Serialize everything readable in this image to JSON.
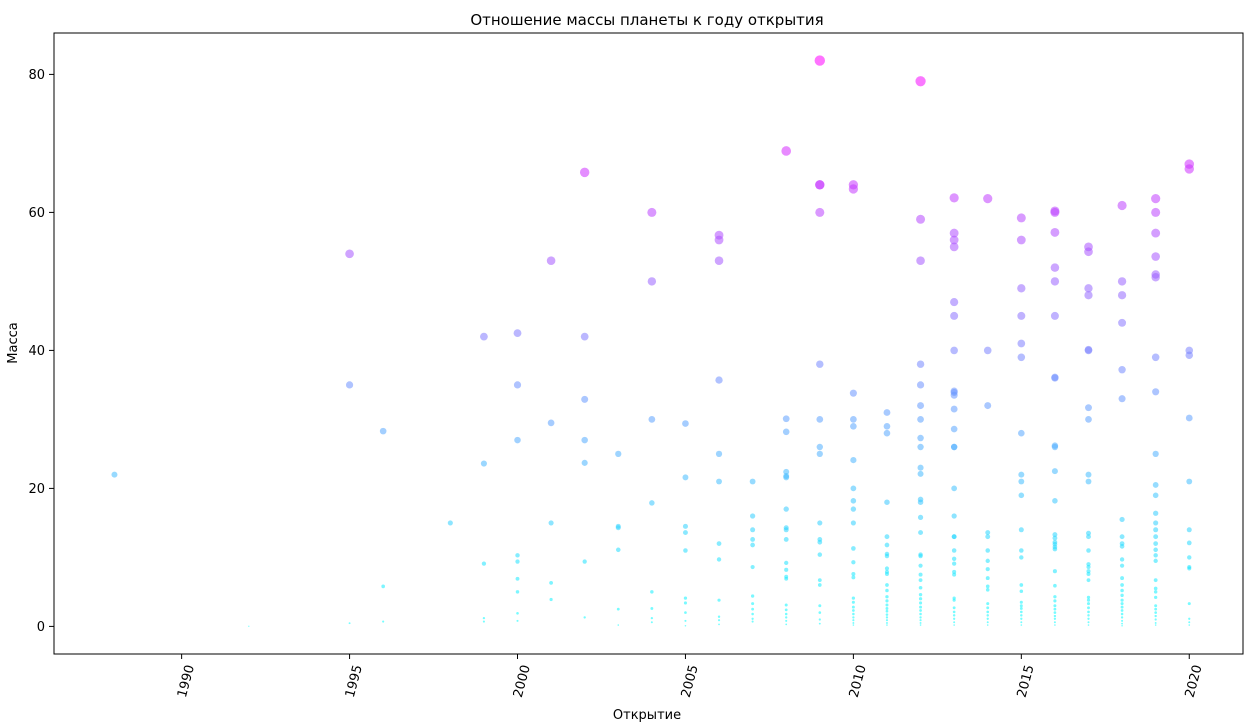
{
  "chart_data": {
    "type": "scatter",
    "title": "Отношение массы планеты к году открытия",
    "xlabel": "Открытие",
    "ylabel": "Масса",
    "xlim": [
      1986.2,
      2021.6
    ],
    "ylim": [
      -4,
      86
    ],
    "x_ticks": [
      1990,
      1995,
      2000,
      2005,
      2010,
      2015,
      2020
    ],
    "y_ticks": [
      0,
      20,
      40,
      60,
      80
    ],
    "grid": false,
    "colormap": [
      "#00ffff",
      "#ff00ff"
    ],
    "points": [
      [
        1988,
        22
      ],
      [
        1992,
        0.02
      ],
      [
        1995,
        54
      ],
      [
        1995,
        35
      ],
      [
        1995,
        0.47
      ],
      [
        1996,
        28.3
      ],
      [
        1996,
        5.8
      ],
      [
        1996,
        0.7
      ],
      [
        1998,
        15
      ],
      [
        1999,
        42
      ],
      [
        1999,
        23.6
      ],
      [
        1999,
        9.1
      ],
      [
        1999,
        1.2
      ],
      [
        1999,
        0.7
      ],
      [
        2000,
        42.5
      ],
      [
        2000,
        35
      ],
      [
        2000,
        27
      ],
      [
        2000,
        10.3
      ],
      [
        2000,
        9.4
      ],
      [
        2000,
        6.9
      ],
      [
        2000,
        5
      ],
      [
        2000,
        1.9
      ],
      [
        2000,
        0.8
      ],
      [
        2001,
        53
      ],
      [
        2001,
        29.5
      ],
      [
        2001,
        15
      ],
      [
        2001,
        6.3
      ],
      [
        2001,
        3.9
      ],
      [
        2002,
        65.8
      ],
      [
        2002,
        42
      ],
      [
        2002,
        32.9
      ],
      [
        2002,
        27
      ],
      [
        2002,
        23.7
      ],
      [
        2002,
        9.4
      ],
      [
        2002,
        1.3
      ],
      [
        2003,
        25
      ],
      [
        2003,
        14.5
      ],
      [
        2003,
        14.3
      ],
      [
        2003,
        11.1
      ],
      [
        2003,
        2.5
      ],
      [
        2003,
        0.2
      ],
      [
        2004,
        60
      ],
      [
        2004,
        50
      ],
      [
        2004,
        30
      ],
      [
        2004,
        17.9
      ],
      [
        2004,
        5
      ],
      [
        2004,
        2.6
      ],
      [
        2004,
        1.2
      ],
      [
        2004,
        0.6
      ],
      [
        2005,
        29.4
      ],
      [
        2005,
        21.6
      ],
      [
        2005,
        14.5
      ],
      [
        2005,
        13.6
      ],
      [
        2005,
        11
      ],
      [
        2005,
        4.1
      ],
      [
        2005,
        3.4
      ],
      [
        2005,
        2
      ],
      [
        2005,
        0.8
      ],
      [
        2005,
        0.1
      ],
      [
        2006,
        56.7
      ],
      [
        2006,
        56
      ],
      [
        2006,
        53
      ],
      [
        2006,
        35.7
      ],
      [
        2006,
        25
      ],
      [
        2006,
        21
      ],
      [
        2006,
        12
      ],
      [
        2006,
        9.7
      ],
      [
        2006,
        3.8
      ],
      [
        2006,
        1.4
      ],
      [
        2006,
        0.9
      ],
      [
        2006,
        0.3
      ],
      [
        2007,
        21
      ],
      [
        2007,
        16
      ],
      [
        2007,
        14
      ],
      [
        2007,
        12.6
      ],
      [
        2007,
        11.8
      ],
      [
        2007,
        8.6
      ],
      [
        2007,
        4.4
      ],
      [
        2007,
        3.3
      ],
      [
        2007,
        2.5
      ],
      [
        2007,
        1.8
      ],
      [
        2007,
        1.1
      ],
      [
        2007,
        0.7
      ],
      [
        2008,
        68.9
      ],
      [
        2008,
        30.1
      ],
      [
        2008,
        28.2
      ],
      [
        2008,
        22.4
      ],
      [
        2008,
        21.8
      ],
      [
        2008,
        21.6
      ],
      [
        2008,
        17
      ],
      [
        2008,
        14.3
      ],
      [
        2008,
        14
      ],
      [
        2008,
        12.6
      ],
      [
        2008,
        9.2
      ],
      [
        2008,
        8.2
      ],
      [
        2008,
        7.2
      ],
      [
        2008,
        6.9
      ],
      [
        2008,
        3.1
      ],
      [
        2008,
        2.4
      ],
      [
        2008,
        1.8
      ],
      [
        2008,
        1.3
      ],
      [
        2008,
        0.8
      ],
      [
        2008,
        0.3
      ],
      [
        2009,
        82
      ],
      [
        2009,
        64
      ],
      [
        2009,
        64
      ],
      [
        2009,
        60
      ],
      [
        2009,
        38
      ],
      [
        2009,
        30
      ],
      [
        2009,
        26
      ],
      [
        2009,
        25
      ],
      [
        2009,
        15
      ],
      [
        2009,
        12.6
      ],
      [
        2009,
        12.2
      ],
      [
        2009,
        10.4
      ],
      [
        2009,
        6.7
      ],
      [
        2009,
        6
      ],
      [
        2009,
        3
      ],
      [
        2009,
        2
      ],
      [
        2009,
        1
      ],
      [
        2009,
        0.4
      ],
      [
        2010,
        64
      ],
      [
        2010,
        63.4
      ],
      [
        2010,
        33.8
      ],
      [
        2010,
        30
      ],
      [
        2010,
        29
      ],
      [
        2010,
        24.1
      ],
      [
        2010,
        20
      ],
      [
        2010,
        18.2
      ],
      [
        2010,
        17
      ],
      [
        2010,
        15
      ],
      [
        2010,
        11.3
      ],
      [
        2010,
        9.3
      ],
      [
        2010,
        7.6
      ],
      [
        2010,
        7.1
      ],
      [
        2010,
        4.1
      ],
      [
        2010,
        3.5
      ],
      [
        2010,
        2.8
      ],
      [
        2010,
        2.3
      ],
      [
        2010,
        1.8
      ],
      [
        2010,
        1.3
      ],
      [
        2010,
        0.9
      ],
      [
        2010,
        0.5
      ],
      [
        2010,
        0.2
      ],
      [
        2011,
        31
      ],
      [
        2011,
        29
      ],
      [
        2011,
        28
      ],
      [
        2011,
        18
      ],
      [
        2011,
        13
      ],
      [
        2011,
        11.8
      ],
      [
        2011,
        10.5
      ],
      [
        2011,
        10.2
      ],
      [
        2011,
        8.4
      ],
      [
        2011,
        7.9
      ],
      [
        2011,
        7.6
      ],
      [
        2011,
        6
      ],
      [
        2011,
        5.2
      ],
      [
        2011,
        4.3
      ],
      [
        2011,
        3.7
      ],
      [
        2011,
        3.1
      ],
      [
        2011,
        2.6
      ],
      [
        2011,
        2.2
      ],
      [
        2011,
        1.7
      ],
      [
        2011,
        1.3
      ],
      [
        2011,
        0.9
      ],
      [
        2011,
        0.5
      ],
      [
        2011,
        0.2
      ],
      [
        2012,
        79
      ],
      [
        2012,
        59
      ],
      [
        2012,
        53
      ],
      [
        2012,
        38
      ],
      [
        2012,
        35
      ],
      [
        2012,
        32
      ],
      [
        2012,
        30
      ],
      [
        2012,
        27.3
      ],
      [
        2012,
        26
      ],
      [
        2012,
        23
      ],
      [
        2012,
        22.1
      ],
      [
        2012,
        18.4
      ],
      [
        2012,
        18
      ],
      [
        2012,
        15.8
      ],
      [
        2012,
        13.6
      ],
      [
        2012,
        10.4
      ],
      [
        2012,
        10.2
      ],
      [
        2012,
        8.8
      ],
      [
        2012,
        7.5
      ],
      [
        2012,
        6.7
      ],
      [
        2012,
        5.6
      ],
      [
        2012,
        4.6
      ],
      [
        2012,
        4
      ],
      [
        2012,
        3.4
      ],
      [
        2012,
        2.8
      ],
      [
        2012,
        2.3
      ],
      [
        2012,
        1.8
      ],
      [
        2012,
        1.3
      ],
      [
        2012,
        0.9
      ],
      [
        2012,
        0.5
      ],
      [
        2012,
        0.2
      ],
      [
        2013,
        62.1
      ],
      [
        2013,
        57
      ],
      [
        2013,
        56
      ],
      [
        2013,
        55
      ],
      [
        2013,
        47
      ],
      [
        2013,
        45
      ],
      [
        2013,
        40
      ],
      [
        2013,
        34.1
      ],
      [
        2013,
        33.9
      ],
      [
        2013,
        33.5
      ],
      [
        2013,
        31.5
      ],
      [
        2013,
        28.6
      ],
      [
        2013,
        26
      ],
      [
        2013,
        26
      ],
      [
        2013,
        20
      ],
      [
        2013,
        16
      ],
      [
        2013,
        13
      ],
      [
        2013,
        13
      ],
      [
        2013,
        11
      ],
      [
        2013,
        9.8
      ],
      [
        2013,
        9.1
      ],
      [
        2013,
        7.9
      ],
      [
        2013,
        7.5
      ],
      [
        2013,
        4.1
      ],
      [
        2013,
        3.8
      ],
      [
        2013,
        2.7
      ],
      [
        2013,
        2.1
      ],
      [
        2013,
        1.6
      ],
      [
        2013,
        1.1
      ],
      [
        2013,
        0.6
      ],
      [
        2013,
        0.2
      ],
      [
        2014,
        62
      ],
      [
        2014,
        40
      ],
      [
        2014,
        32
      ],
      [
        2014,
        13.6
      ],
      [
        2014,
        13
      ],
      [
        2014,
        11
      ],
      [
        2014,
        9.5
      ],
      [
        2014,
        8.3
      ],
      [
        2014,
        7
      ],
      [
        2014,
        5.8
      ],
      [
        2014,
        5.3
      ],
      [
        2014,
        3.3
      ],
      [
        2014,
        2.7
      ],
      [
        2014,
        2.1
      ],
      [
        2014,
        1.6
      ],
      [
        2014,
        1.1
      ],
      [
        2014,
        0.6
      ],
      [
        2014,
        0.2
      ],
      [
        2015,
        59.2
      ],
      [
        2015,
        56
      ],
      [
        2015,
        49
      ],
      [
        2015,
        45
      ],
      [
        2015,
        41
      ],
      [
        2015,
        39
      ],
      [
        2015,
        28
      ],
      [
        2015,
        22
      ],
      [
        2015,
        21
      ],
      [
        2015,
        19
      ],
      [
        2015,
        14
      ],
      [
        2015,
        11
      ],
      [
        2015,
        10
      ],
      [
        2015,
        6
      ],
      [
        2015,
        5.1
      ],
      [
        2015,
        3.5
      ],
      [
        2015,
        3
      ],
      [
        2015,
        2.6
      ],
      [
        2015,
        2.1
      ],
      [
        2015,
        1.6
      ],
      [
        2015,
        1.1
      ],
      [
        2015,
        0.6
      ],
      [
        2015,
        0.2
      ],
      [
        2016,
        60.2
      ],
      [
        2016,
        60
      ],
      [
        2016,
        57.1
      ],
      [
        2016,
        52
      ],
      [
        2016,
        50
      ],
      [
        2016,
        45
      ],
      [
        2016,
        36.1
      ],
      [
        2016,
        36
      ],
      [
        2016,
        26.2
      ],
      [
        2016,
        26
      ],
      [
        2016,
        22.5
      ],
      [
        2016,
        18.2
      ],
      [
        2016,
        13.3
      ],
      [
        2016,
        12.8
      ],
      [
        2016,
        12.2
      ],
      [
        2016,
        11.9
      ],
      [
        2016,
        11.5
      ],
      [
        2016,
        11.2
      ],
      [
        2016,
        8
      ],
      [
        2016,
        5.9
      ],
      [
        2016,
        4.3
      ],
      [
        2016,
        3.7
      ],
      [
        2016,
        3
      ],
      [
        2016,
        2.5
      ],
      [
        2016,
        2
      ],
      [
        2016,
        1.5
      ],
      [
        2016,
        1.1
      ],
      [
        2016,
        0.6
      ],
      [
        2016,
        0.2
      ],
      [
        2017,
        55
      ],
      [
        2017,
        54.3
      ],
      [
        2017,
        49
      ],
      [
        2017,
        48
      ],
      [
        2017,
        40.1
      ],
      [
        2017,
        40
      ],
      [
        2017,
        31.7
      ],
      [
        2017,
        30
      ],
      [
        2017,
        22
      ],
      [
        2017,
        21
      ],
      [
        2017,
        13.5
      ],
      [
        2017,
        13
      ],
      [
        2017,
        11
      ],
      [
        2017,
        9
      ],
      [
        2017,
        8.6
      ],
      [
        2017,
        8
      ],
      [
        2017,
        7.6
      ],
      [
        2017,
        6.7
      ],
      [
        2017,
        4.2
      ],
      [
        2017,
        3.8
      ],
      [
        2017,
        3.3
      ],
      [
        2017,
        2.7
      ],
      [
        2017,
        2.1
      ],
      [
        2017,
        1.6
      ],
      [
        2017,
        1.1
      ],
      [
        2017,
        0.6
      ],
      [
        2017,
        0.2
      ],
      [
        2018,
        61
      ],
      [
        2018,
        50
      ],
      [
        2018,
        48
      ],
      [
        2018,
        44
      ],
      [
        2018,
        37.2
      ],
      [
        2018,
        33
      ],
      [
        2018,
        15.5
      ],
      [
        2018,
        13
      ],
      [
        2018,
        12
      ],
      [
        2018,
        11.6
      ],
      [
        2018,
        9.7
      ],
      [
        2018,
        8.8
      ],
      [
        2018,
        7
      ],
      [
        2018,
        6
      ],
      [
        2018,
        5.2
      ],
      [
        2018,
        4.5
      ],
      [
        2018,
        3.8
      ],
      [
        2018,
        3.3
      ],
      [
        2018,
        2.8
      ],
      [
        2018,
        2.3
      ],
      [
        2018,
        1.8
      ],
      [
        2018,
        1.3
      ],
      [
        2018,
        0.8
      ],
      [
        2018,
        0.4
      ],
      [
        2018,
        0.1
      ],
      [
        2019,
        62
      ],
      [
        2019,
        60
      ],
      [
        2019,
        57
      ],
      [
        2019,
        53.6
      ],
      [
        2019,
        51
      ],
      [
        2019,
        50.6
      ],
      [
        2019,
        39
      ],
      [
        2019,
        34
      ],
      [
        2019,
        25
      ],
      [
        2019,
        20.5
      ],
      [
        2019,
        19
      ],
      [
        2019,
        16.4
      ],
      [
        2019,
        15
      ],
      [
        2019,
        14
      ],
      [
        2019,
        13
      ],
      [
        2019,
        12
      ],
      [
        2019,
        11.1
      ],
      [
        2019,
        10.3
      ],
      [
        2019,
        9.5
      ],
      [
        2019,
        6.7
      ],
      [
        2019,
        5.5
      ],
      [
        2019,
        5
      ],
      [
        2019,
        4.2
      ],
      [
        2019,
        3
      ],
      [
        2019,
        2.5
      ],
      [
        2019,
        2
      ],
      [
        2019,
        1.5
      ],
      [
        2019,
        1
      ],
      [
        2019,
        0.5
      ],
      [
        2019,
        0.2
      ],
      [
        2020,
        67
      ],
      [
        2020,
        66.3
      ],
      [
        2020,
        40
      ],
      [
        2020,
        39.3
      ],
      [
        2020,
        30.2
      ],
      [
        2020,
        21
      ],
      [
        2020,
        14
      ],
      [
        2020,
        12.1
      ],
      [
        2020,
        10
      ],
      [
        2020,
        8.6
      ],
      [
        2020,
        8.4
      ],
      [
        2020,
        3.3
      ],
      [
        2020,
        1.1
      ],
      [
        2020,
        0.6
      ],
      [
        2020,
        0.2
      ]
    ]
  }
}
